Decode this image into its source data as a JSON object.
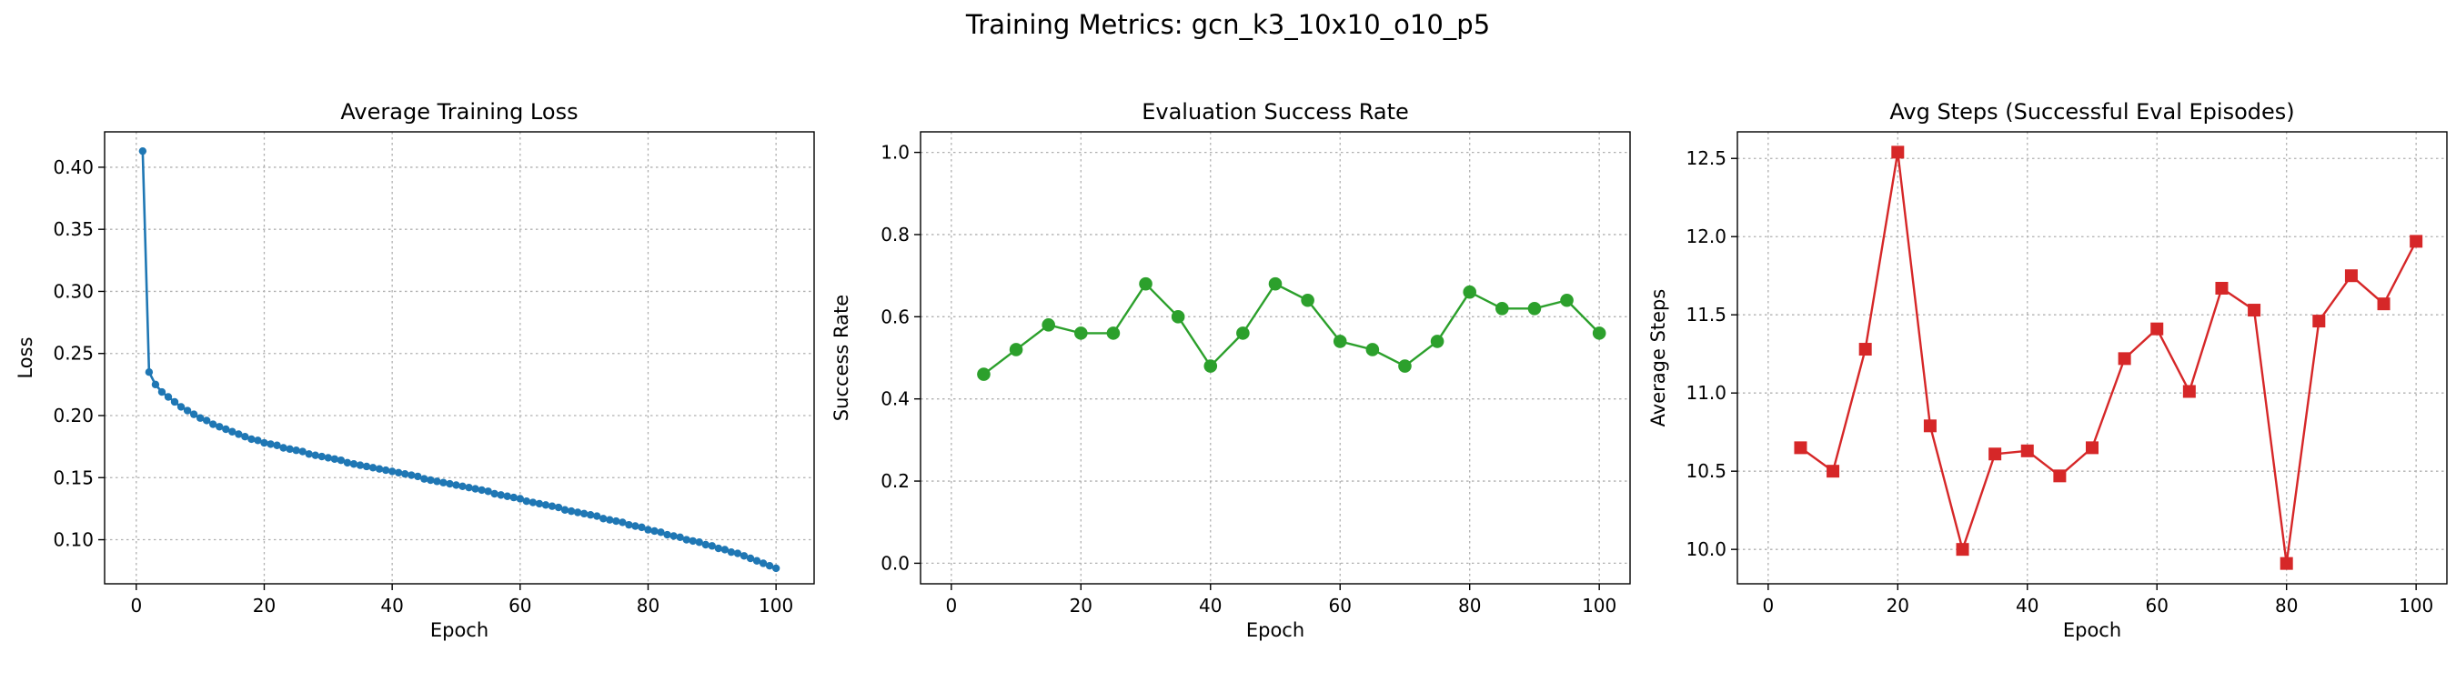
{
  "figure": {
    "suptitle": "Training Metrics: gcn_k3_10x10_o10_p5"
  },
  "chart_data": [
    {
      "type": "line",
      "title": "Average Training Loss",
      "xlabel": "Epoch",
      "ylabel": "Loss",
      "xlim": [
        -4.95,
        105.95
      ],
      "ylim": [
        0.0645,
        0.4285
      ],
      "xticks": [
        0,
        20,
        40,
        60,
        80,
        100
      ],
      "yticks": [
        0.1,
        0.15,
        0.2,
        0.25,
        0.3,
        0.35,
        0.4
      ],
      "ytick_decimals": 2,
      "grid": true,
      "color": "#1f77b4",
      "marker": "circle-small",
      "series": [
        {
          "x": [
            1,
            2,
            3,
            4,
            5,
            6,
            7,
            8,
            9,
            10,
            11,
            12,
            13,
            14,
            15,
            16,
            17,
            18,
            19,
            20,
            21,
            22,
            23,
            24,
            25,
            26,
            27,
            28,
            29,
            30,
            31,
            32,
            33,
            34,
            35,
            36,
            37,
            38,
            39,
            40,
            41,
            42,
            43,
            44,
            45,
            46,
            47,
            48,
            49,
            50,
            51,
            52,
            53,
            54,
            55,
            56,
            57,
            58,
            59,
            60,
            61,
            62,
            63,
            64,
            65,
            66,
            67,
            68,
            69,
            70,
            71,
            72,
            73,
            74,
            75,
            76,
            77,
            78,
            79,
            80,
            81,
            82,
            83,
            84,
            85,
            86,
            87,
            88,
            89,
            90,
            91,
            92,
            93,
            94,
            95,
            96,
            97,
            98,
            99,
            100
          ],
          "y": [
            0.413,
            0.235,
            0.225,
            0.219,
            0.215,
            0.211,
            0.207,
            0.204,
            0.201,
            0.198,
            0.196,
            0.193,
            0.191,
            0.189,
            0.187,
            0.185,
            0.183,
            0.181,
            0.18,
            0.178,
            0.177,
            0.176,
            0.174,
            0.173,
            0.172,
            0.171,
            0.169,
            0.168,
            0.167,
            0.166,
            0.165,
            0.164,
            0.162,
            0.161,
            0.16,
            0.159,
            0.158,
            0.157,
            0.156,
            0.155,
            0.154,
            0.153,
            0.152,
            0.151,
            0.149,
            0.148,
            0.147,
            0.146,
            0.145,
            0.144,
            0.143,
            0.142,
            0.141,
            0.14,
            0.139,
            0.137,
            0.136,
            0.135,
            0.134,
            0.133,
            0.131,
            0.13,
            0.129,
            0.128,
            0.127,
            0.126,
            0.124,
            0.123,
            0.122,
            0.121,
            0.12,
            0.119,
            0.117,
            0.116,
            0.115,
            0.114,
            0.112,
            0.111,
            0.11,
            0.108,
            0.107,
            0.106,
            0.104,
            0.103,
            0.102,
            0.1,
            0.099,
            0.098,
            0.096,
            0.095,
            0.093,
            0.092,
            0.09,
            0.089,
            0.087,
            0.085,
            0.083,
            0.081,
            0.079,
            0.077
          ]
        }
      ]
    },
    {
      "type": "line",
      "title": "Evaluation Success Rate",
      "xlabel": "Epoch",
      "ylabel": "Success Rate",
      "xlim": [
        -4.75,
        104.75
      ],
      "ylim": [
        -0.05,
        1.05
      ],
      "xticks": [
        0,
        20,
        40,
        60,
        80,
        100
      ],
      "yticks": [
        0.0,
        0.2,
        0.4,
        0.6,
        0.8,
        1.0
      ],
      "ytick_decimals": 1,
      "grid": true,
      "color": "#2ca02c",
      "marker": "circle",
      "series": [
        {
          "x": [
            5,
            10,
            15,
            20,
            25,
            30,
            35,
            40,
            45,
            50,
            55,
            60,
            65,
            70,
            75,
            80,
            85,
            90,
            95,
            100
          ],
          "y": [
            0.46,
            0.52,
            0.58,
            0.56,
            0.56,
            0.68,
            0.6,
            0.48,
            0.56,
            0.68,
            0.64,
            0.54,
            0.52,
            0.48,
            0.54,
            0.66,
            0.62,
            0.62,
            0.64,
            0.56
          ]
        }
      ]
    },
    {
      "type": "line",
      "title": "Avg Steps (Successful Eval Episodes)",
      "xlabel": "Epoch",
      "ylabel": "Average Steps",
      "xlim": [
        -4.75,
        104.75
      ],
      "ylim": [
        9.78,
        12.67
      ],
      "xticks": [
        0,
        20,
        40,
        60,
        80,
        100
      ],
      "yticks": [
        10.0,
        10.5,
        11.0,
        11.5,
        12.0,
        12.5
      ],
      "ytick_decimals": 1,
      "grid": true,
      "color": "#d62728",
      "marker": "square",
      "series": [
        {
          "x": [
            5,
            10,
            15,
            20,
            25,
            30,
            35,
            40,
            45,
            50,
            55,
            60,
            65,
            70,
            75,
            80,
            85,
            90,
            95,
            100
          ],
          "y": [
            10.65,
            10.5,
            11.28,
            12.54,
            10.79,
            10.0,
            10.61,
            10.63,
            10.47,
            10.65,
            11.22,
            11.41,
            11.01,
            11.67,
            11.53,
            9.91,
            11.46,
            11.75,
            11.57,
            11.97
          ]
        }
      ]
    }
  ]
}
